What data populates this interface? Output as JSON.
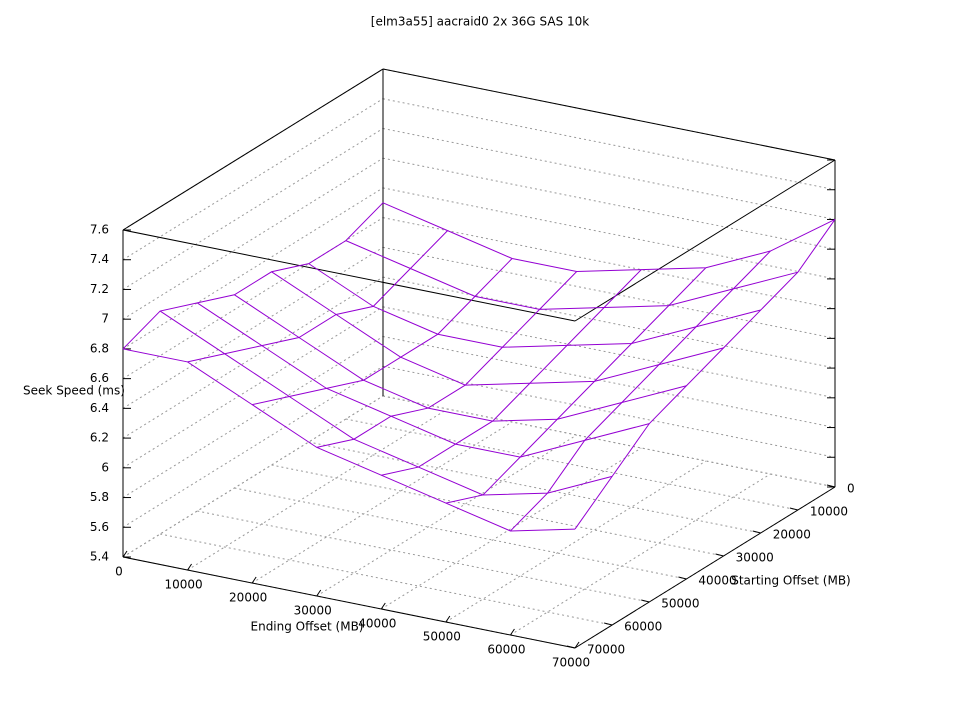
{
  "chart_data": {
    "type": "surface",
    "title": "[elm3a55] aacraid0 2x 36G SAS 10k",
    "x_label": "Ending Offset (MB)",
    "y_label": "Starting Offset (MB)",
    "z_label": "Seek Speed (ms)",
    "x": [
      0,
      10000,
      20000,
      30000,
      40000,
      50000,
      60000,
      70000
    ],
    "y": [
      0,
      10000,
      20000,
      30000,
      40000,
      50000,
      60000,
      70000
    ],
    "z": [
      [
        6.7,
        6.6,
        6.5,
        6.5,
        6.6,
        6.7,
        6.9,
        7.2
      ],
      [
        6.6,
        6.5,
        6.4,
        6.4,
        6.5,
        6.6,
        6.8,
        7.0
      ],
      [
        6.6,
        6.4,
        6.3,
        6.3,
        6.4,
        6.5,
        6.7,
        6.9
      ],
      [
        6.7,
        6.5,
        6.3,
        6.2,
        6.3,
        6.4,
        6.6,
        6.8
      ],
      [
        6.7,
        6.5,
        6.3,
        6.2,
        6.2,
        6.3,
        6.5,
        6.7
      ],
      [
        6.8,
        6.6,
        6.4,
        6.3,
        6.2,
        6.2,
        6.4,
        6.6
      ],
      [
        6.9,
        6.7,
        6.5,
        6.3,
        6.2,
        6.1,
        6.2,
        6.4
      ],
      [
        6.8,
        6.8,
        6.6,
        6.4,
        6.3,
        6.2,
        6.1,
        6.2
      ]
    ],
    "color": "#9400d3",
    "xlim": [
      0,
      70000
    ],
    "ylim": [
      0,
      70000
    ],
    "zlim": [
      5.4,
      7.6
    ],
    "xticks": [
      0,
      10000,
      20000,
      30000,
      40000,
      50000,
      60000,
      70000
    ],
    "yticks": [
      0,
      10000,
      20000,
      30000,
      40000,
      50000,
      60000,
      70000
    ],
    "zticks": [
      5.4,
      5.6,
      5.8,
      6,
      6.2,
      6.4,
      6.6,
      6.8,
      7,
      7.2,
      7.4,
      7.6
    ],
    "grid": true
  }
}
